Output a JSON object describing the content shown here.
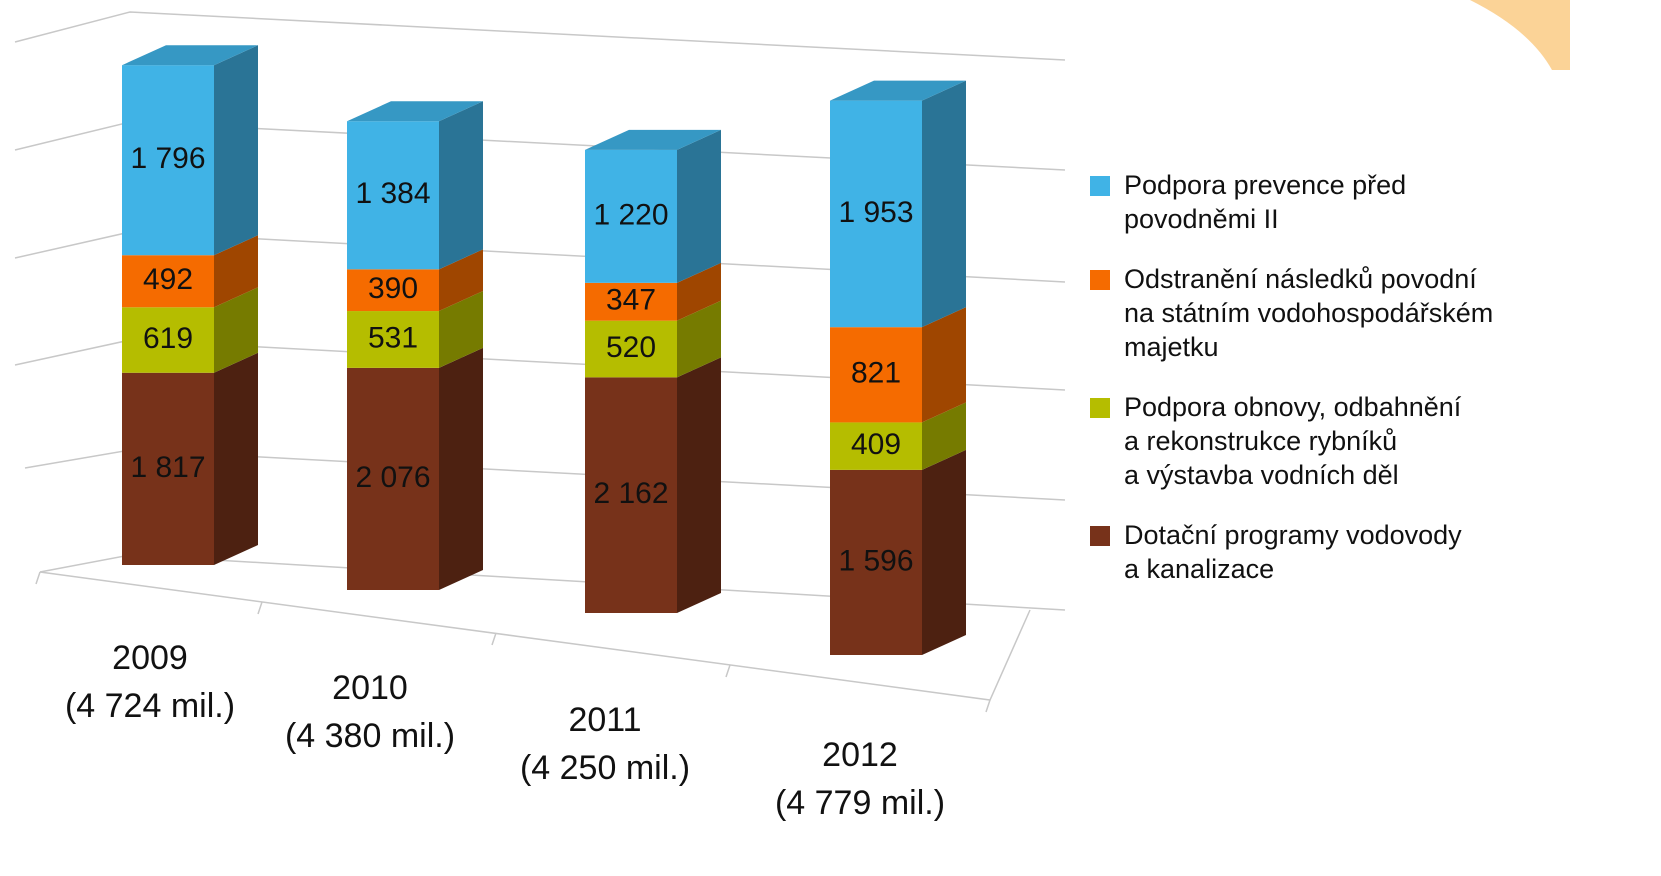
{
  "chart_data": {
    "type": "bar3d_stacked",
    "categories": [
      "2009",
      "2010",
      "2011",
      "2012"
    ],
    "category_notes": [
      "(4 724 mil.)",
      "(4 380 mil.)",
      "(4 250 mil.)",
      "(4 779 mil.)"
    ],
    "series": [
      {
        "name": "Dotační programy vodovody\na kanalizace",
        "color": "#77321a",
        "values": [
          1817,
          2076,
          2162,
          1596
        ],
        "value_labels": [
          "1 817",
          "2 076",
          "2 162",
          "1 596"
        ]
      },
      {
        "name": "Podpora obnovy, odbahnění\na rekonstrukce rybníků\na výstavba vodních děl",
        "color": "#b5bd00",
        "values": [
          619,
          531,
          520,
          409
        ],
        "value_labels": [
          "619",
          "531",
          "520",
          "409"
        ]
      },
      {
        "name": "Odstranění následků povodní\nna státním vodohospodářském\nmajetku",
        "color": "#f56b00",
        "values": [
          492,
          390,
          347,
          821
        ],
        "value_labels": [
          "492",
          "390",
          "347",
          "821"
        ]
      },
      {
        "name": "Podpora prevence před\npovodněmi II",
        "color": "#40b3e6",
        "values": [
          1796,
          1384,
          1220,
          1953
        ],
        "value_labels": [
          "1 796",
          "1 384",
          "1 220",
          "1 953"
        ]
      }
    ],
    "ylim": [
      0,
      5000
    ],
    "legend": "right"
  }
}
